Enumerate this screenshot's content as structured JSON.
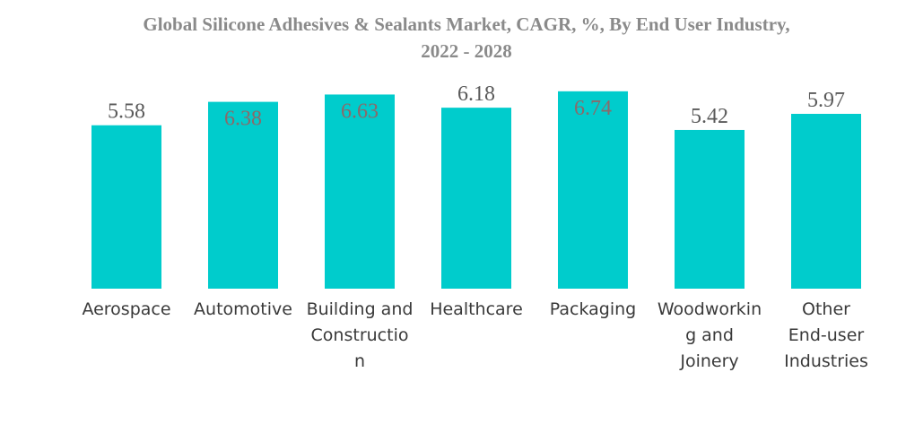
{
  "chart_data": {
    "type": "bar",
    "title_lines": [
      "Global Silicone Adhesives & Sealants Market, CAGR, %, By End User Industry,",
      "2022 - 2028"
    ],
    "categories": [
      "Aerospace",
      "Automotive",
      "Building and Construction",
      "Healthcare",
      "Packaging",
      "Woodworking and Joinery",
      "Other End-user Industries"
    ],
    "category_label_lines": [
      [
        "Aerospace"
      ],
      [
        "Automotive"
      ],
      [
        "Building and",
        "Constructio",
        "n"
      ],
      [
        "Healthcare"
      ],
      [
        "Packaging"
      ],
      [
        "Woodworkin",
        "g and",
        "Joinery"
      ],
      [
        "Other",
        "End-user",
        "Industries"
      ]
    ],
    "values": [
      5.58,
      6.38,
      6.63,
      6.18,
      6.74,
      5.42,
      5.97
    ],
    "value_labels": [
      "5.58",
      "6.38",
      "6.63",
      "6.18",
      "6.74",
      "5.42",
      "5.97"
    ],
    "label_inside": [
      false,
      true,
      true,
      false,
      true,
      false,
      false
    ],
    "ylim": [
      0,
      6.98
    ],
    "xlabel": "",
    "ylabel": "",
    "grid": false,
    "colors": {
      "bar": "#00CCCC",
      "label_outside": "#5a5a5a",
      "label_inside": "#8a6a6a"
    }
  }
}
